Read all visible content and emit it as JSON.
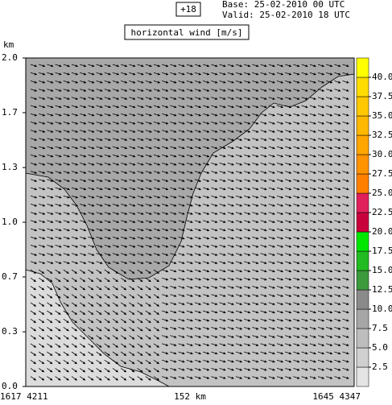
{
  "header": {
    "forecast": "+18",
    "base": "Base: 25-02-2010  00 UTC",
    "valid": "Valid: 25-02-2010  18 UTC"
  },
  "chart_data": {
    "type": "contour",
    "title": "horizontal wind [m/s]",
    "y_label": "km",
    "ylim": [
      0,
      2
    ],
    "yticks": [
      {
        "value": 0,
        "label": "0.0"
      },
      {
        "value": 0.333,
        "label": "0.3"
      },
      {
        "value": 0.667,
        "label": "0.7"
      },
      {
        "value": 1,
        "label": "1.0"
      },
      {
        "value": 1.333,
        "label": "1.3"
      },
      {
        "value": 1.667,
        "label": "1.7"
      },
      {
        "value": 2,
        "label": "2.0"
      }
    ],
    "x_labels": [
      "1617  4211",
      "152 km",
      "1645  4347"
    ],
    "colorbar": {
      "lim": [
        0,
        42.5
      ],
      "ticks": [
        2.5,
        {
          "value": 5,
          "label": "5.0"
        },
        7.5,
        {
          "value": 10,
          "label": "10.0"
        },
        12.5,
        {
          "value": 15,
          "label": "15.0"
        },
        17.5,
        {
          "value": 20,
          "label": "20.0"
        },
        22.5,
        {
          "value": 25,
          "label": "25.0"
        },
        27.5,
        {
          "value": 30,
          "label": "30.0"
        },
        32.5,
        {
          "value": 35,
          "label": "35.0"
        },
        37.5,
        {
          "value": 40,
          "label": "40.0"
        }
      ],
      "colors": [
        "#e4e4e4",
        "#d0d0d0",
        "#bdbdbd",
        "#a6a6a6",
        "#8a8a8a",
        "#3c9a3c",
        "#22bb22",
        "#00e600",
        "#c8003c",
        "#e0205a",
        "#ff8000",
        "#ff9300",
        "#ffa600",
        "#ffb800",
        "#ffc800",
        "#ffdc00",
        "#ffff00"
      ]
    }
  }
}
